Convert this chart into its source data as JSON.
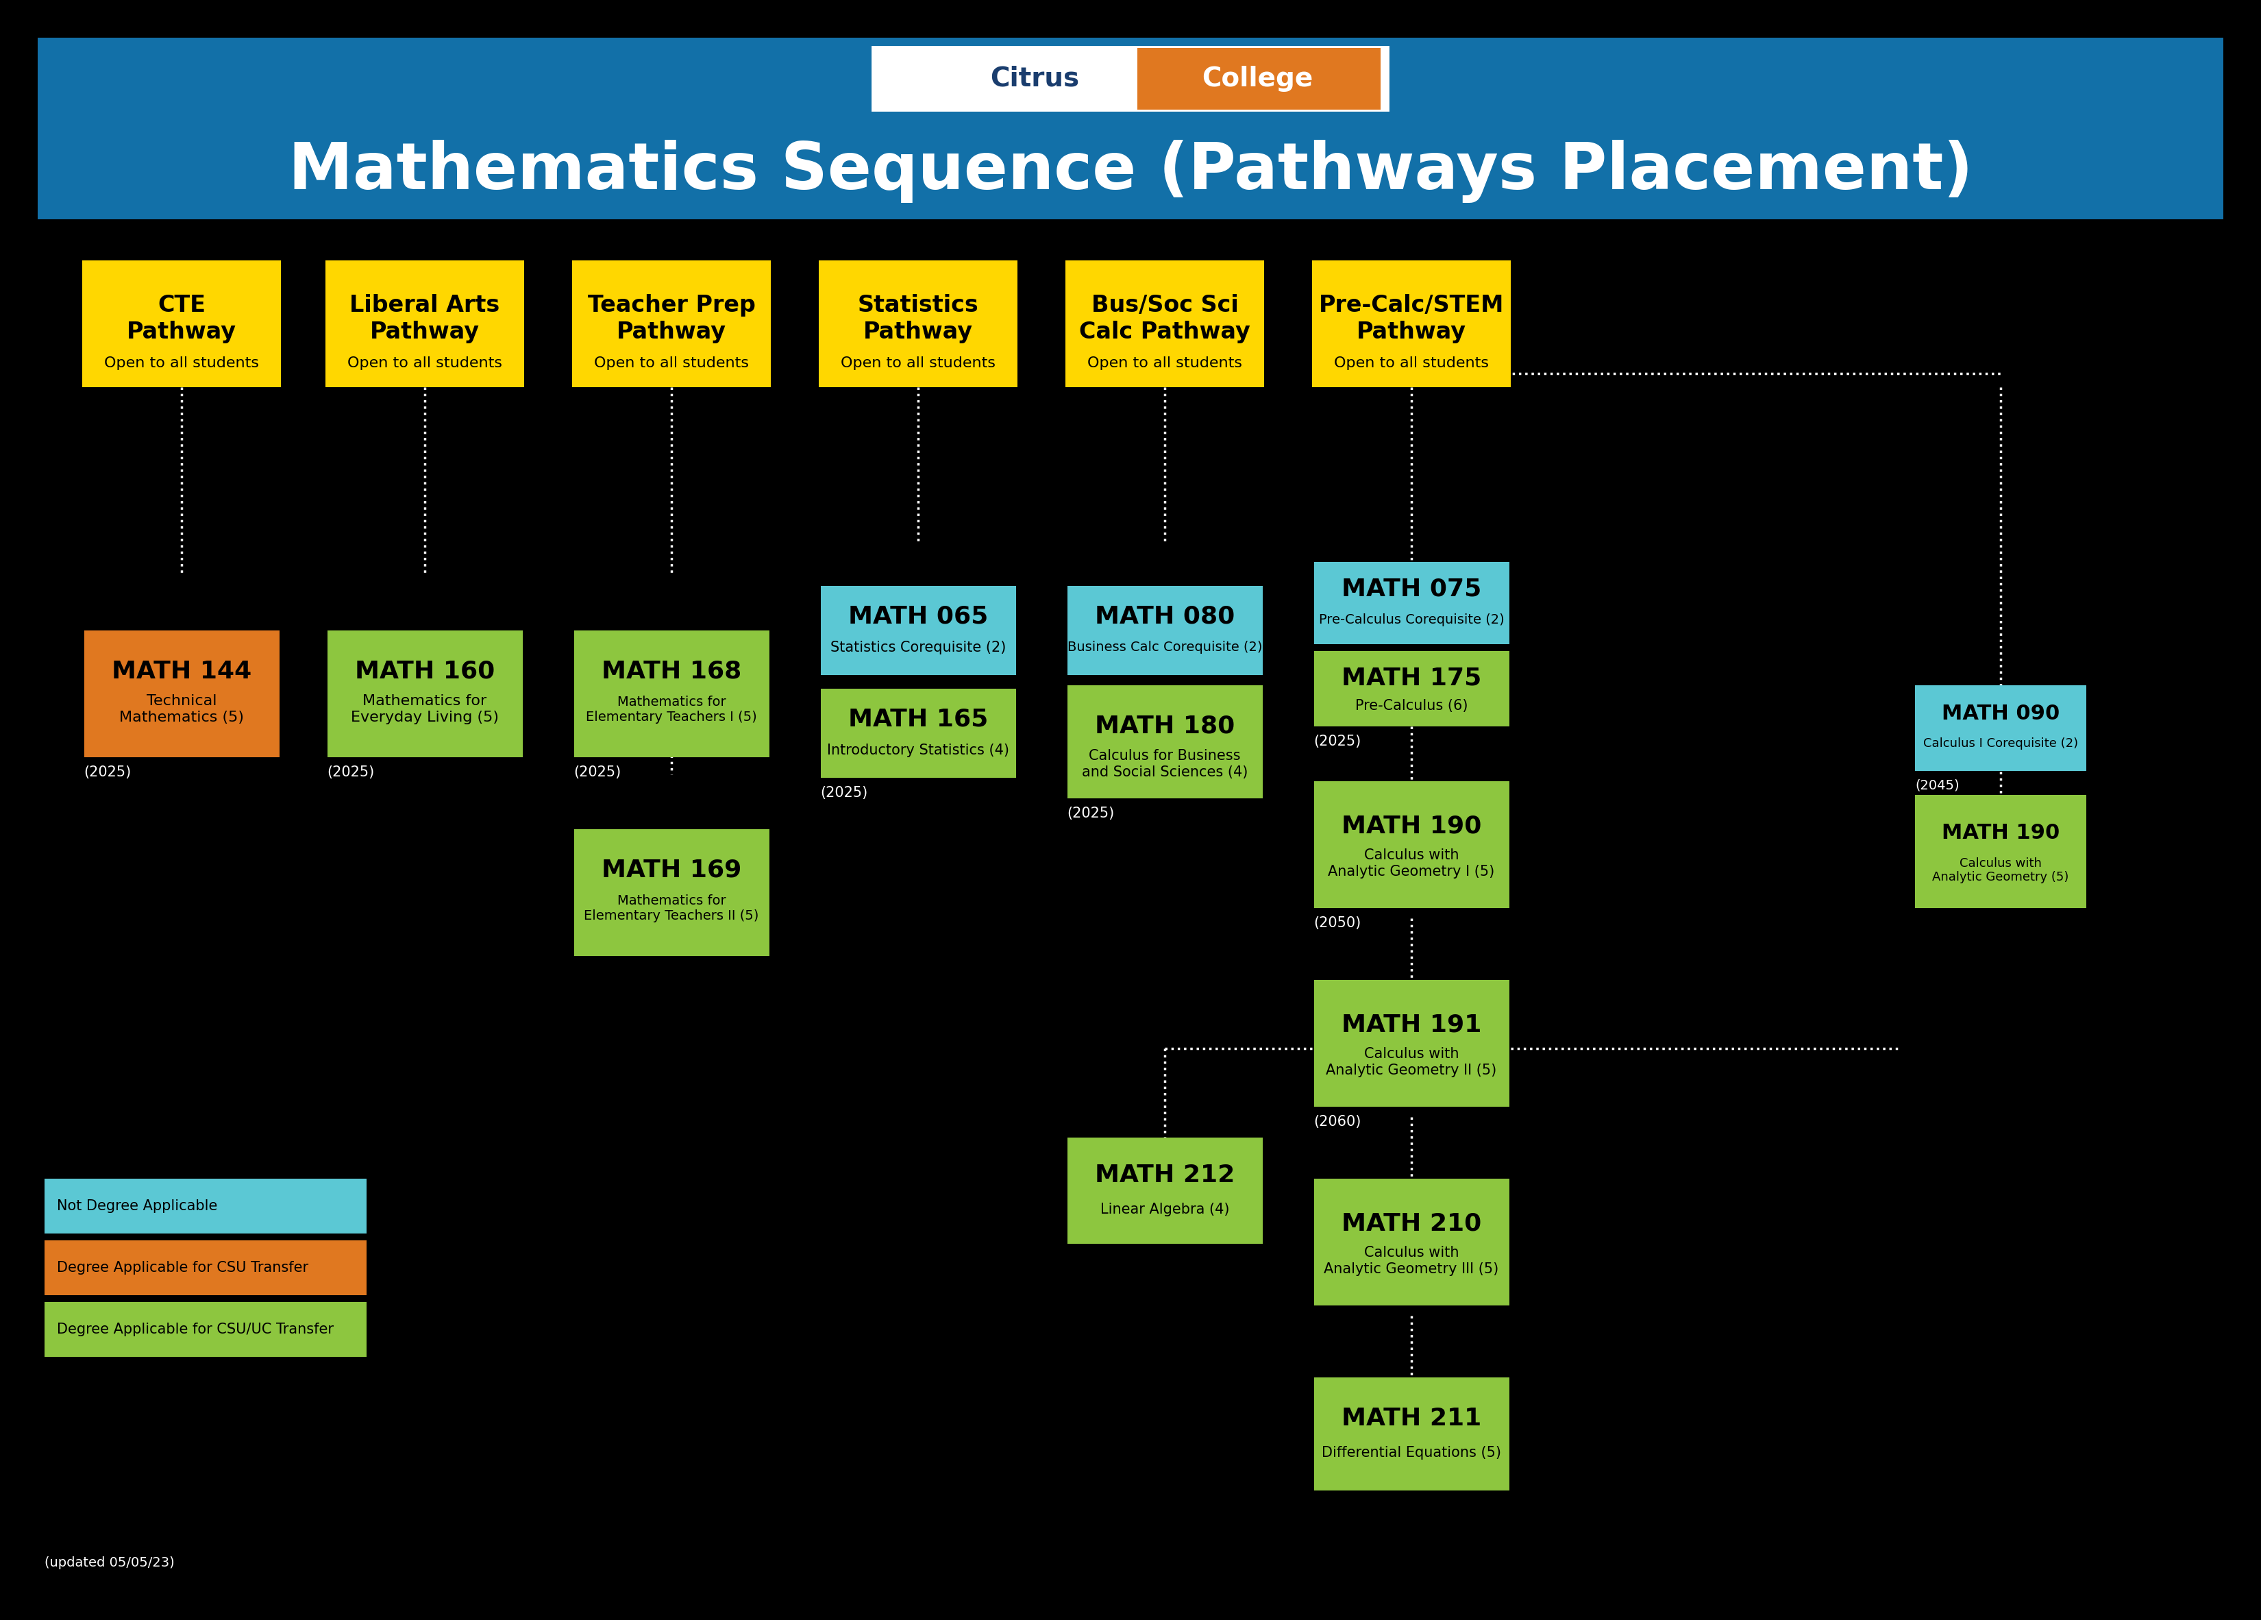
{
  "title": "Mathematics Sequence (Pathways Placement)",
  "bg_color": "#000000",
  "header_bg": "#1270a8",
  "logo_citrus_color": "#1a4c7a",
  "logo_college_bg": "#e07820",
  "pathway_color": "#FFD700",
  "colors": {
    "orange": "#e07820",
    "green": "#8dc63f",
    "cyan": "#5bc8d4"
  },
  "legend": [
    {
      "color": "#5bc8d4",
      "label": "Not Degree Applicable"
    },
    {
      "color": "#e07820",
      "label": "Degree Applicable for CSU Transfer"
    },
    {
      "color": "#8dc63f",
      "label": "Degree Applicable for CSU/UC Transfer"
    }
  ],
  "updated": "(updated 05/05/23)"
}
